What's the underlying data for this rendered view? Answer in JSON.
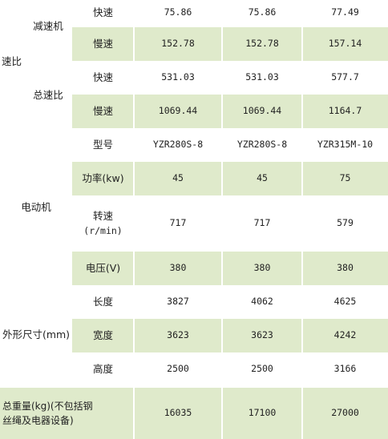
{
  "table": {
    "speed_ratio": {
      "label": "速比",
      "reducer": {
        "label": "减速机",
        "fast": {
          "label": "快速",
          "values": [
            "75.86",
            "75.86",
            "77.49"
          ]
        },
        "slow": {
          "label": "慢速",
          "values": [
            "152.78",
            "152.78",
            "157.14"
          ]
        }
      },
      "total": {
        "label": "总速比",
        "fast": {
          "label": "快速",
          "values": [
            "531.03",
            "531.03",
            "577.7"
          ]
        },
        "slow": {
          "label": "慢速",
          "values": [
            "1069.44",
            "1069.44",
            "1164.7"
          ]
        }
      }
    },
    "motor": {
      "label": "电动机",
      "model": {
        "label": "型号",
        "values": [
          "YZR280S-8",
          "YZR280S-8",
          "YZR315M-10"
        ]
      },
      "power": {
        "label": "功率(kw)",
        "values": [
          "45",
          "45",
          "75"
        ]
      },
      "speed": {
        "label_line1": "转速",
        "label_line2": "(r/min)",
        "values": [
          "717",
          "717",
          "579"
        ]
      },
      "voltage": {
        "label": "电压(V)",
        "values": [
          "380",
          "380",
          "380"
        ]
      }
    },
    "dimensions": {
      "label": "外形尺寸(mm)",
      "length": {
        "label": "长度",
        "values": [
          "3827",
          "4062",
          "4625"
        ]
      },
      "width": {
        "label": "宽度",
        "values": [
          "3623",
          "3623",
          "4242"
        ]
      },
      "height": {
        "label": "高度",
        "values": [
          "2500",
          "2500",
          "3166"
        ]
      }
    },
    "total_weight": {
      "label_line1": "总重量(kg)(不包括钢",
      "label_line2": "丝绳及电器设备)",
      "values": [
        "16035",
        "17100",
        "27000"
      ]
    }
  }
}
